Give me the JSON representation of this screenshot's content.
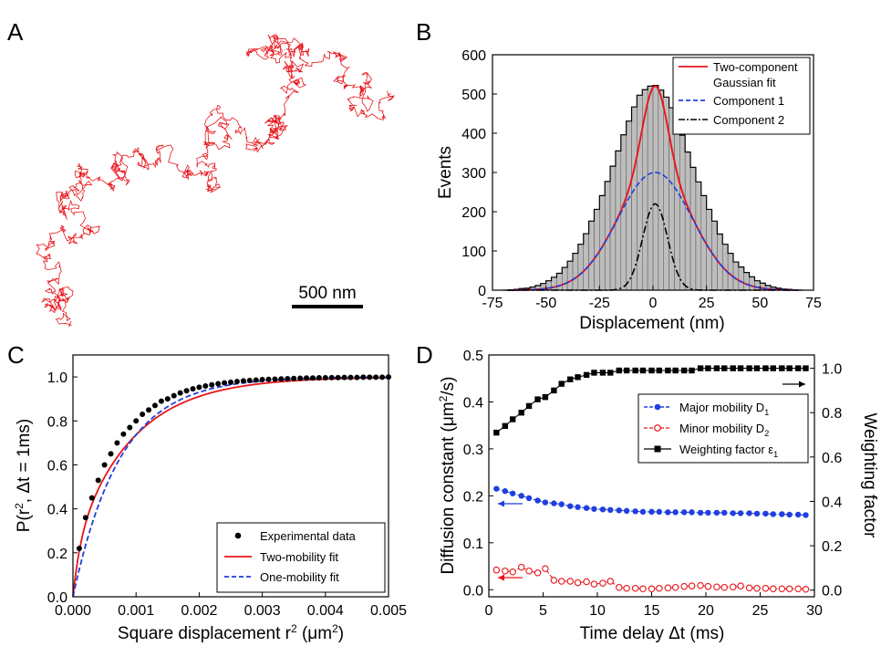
{
  "panels": {
    "A": {
      "letter": "A",
      "scale_bar_label": "500 nm",
      "trajectory_color": "#e8141a"
    },
    "B": {
      "letter": "B",
      "xlabel": "Displacement (nm)",
      "ylabel": "Events",
      "legend": [
        {
          "label_lines": [
            "Two-component",
            "Gaussian fit"
          ],
          "style": "solid",
          "color": "#e8141a"
        },
        {
          "label_lines": [
            "Component 1"
          ],
          "style": "dashed",
          "color": "#1f3fe0"
        },
        {
          "label_lines": [
            "Component 2"
          ],
          "style": "dashdot",
          "color": "#000000"
        }
      ]
    },
    "C": {
      "letter": "C",
      "xlabel_main": "Square displacement r",
      "xlabel_sup": "2",
      "xlabel_unit_pre": " (μm",
      "xlabel_unit_sup": "2",
      "xlabel_unit_post": ")",
      "ylabel_pre": "P(r",
      "ylabel_sup": "2",
      "ylabel_post": ", Δt = 1ms)",
      "legend": [
        {
          "label": "Experimental data",
          "style": "dot",
          "color": "#000000"
        },
        {
          "label": "Two-mobility fit",
          "style": "solid",
          "color": "#e8141a"
        },
        {
          "label": "One-mobility fit",
          "style": "dashed",
          "color": "#1f3fe0"
        }
      ]
    },
    "D": {
      "letter": "D",
      "xlabel": "Time delay Δt (ms)",
      "ylabel_left_pre": "Diffusion constant (μm",
      "ylabel_left_sup": "2",
      "ylabel_left_post": "/s)",
      "ylabel_right": "Weighting factor",
      "legend": [
        {
          "label_main": "Major mobility D",
          "label_sub": "1",
          "marker": "filled-circle",
          "color": "#1f3fe0"
        },
        {
          "label_main": "Minor mobility D",
          "label_sub": "2",
          "marker": "open-circle",
          "color": "#e8141a"
        },
        {
          "label_main": "Weighting factor ε",
          "label_sub": "1",
          "marker": "square",
          "color": "#000000"
        }
      ]
    }
  },
  "chart_data": [
    {
      "panel": "B",
      "type": "bar",
      "title": "",
      "xlabel": "Displacement (nm)",
      "ylabel": "Events",
      "xlim": [
        -75,
        75
      ],
      "ylim": [
        0,
        600
      ],
      "xticks": [
        -75,
        -50,
        -25,
        0,
        25,
        50,
        75
      ],
      "yticks": [
        0,
        100,
        200,
        300,
        400,
        500,
        600
      ],
      "bin_width": 2.5,
      "histogram": {
        "bin_centers": [
          -68.75,
          -66.25,
          -63.75,
          -61.25,
          -58.75,
          -56.25,
          -53.75,
          -51.25,
          -48.75,
          -46.25,
          -43.75,
          -41.25,
          -38.75,
          -36.25,
          -33.75,
          -31.25,
          -28.75,
          -26.25,
          -23.75,
          -21.25,
          -18.75,
          -16.25,
          -13.75,
          -11.25,
          -8.75,
          -6.25,
          -3.75,
          -1.25,
          1.25,
          3.75,
          6.25,
          8.75,
          11.25,
          13.75,
          16.25,
          18.75,
          21.25,
          23.75,
          26.25,
          28.75,
          31.25,
          33.75,
          36.25,
          38.75,
          41.25,
          43.75,
          46.25,
          48.75,
          51.25,
          53.75,
          56.25,
          58.75,
          61.25,
          63.75,
          66.25,
          68.75
        ],
        "counts": [
          0,
          1,
          2,
          4,
          5,
          8,
          12,
          17,
          24,
          33,
          43,
          58,
          74,
          94,
          117,
          144,
          176,
          206,
          241,
          277,
          316,
          355,
          396,
          431,
          467,
          497,
          511,
          520,
          522,
          510,
          492,
          465,
          431,
          395,
          352,
          313,
          276,
          241,
          206,
          176,
          143,
          117,
          94,
          72,
          59,
          45,
          34,
          24,
          18,
          12,
          8,
          5,
          3,
          2,
          1,
          0
        ]
      },
      "series": [
        {
          "name": "Two-component Gaussian fit",
          "style": "solid",
          "color": "#e8141a",
          "components": [
            {
              "amplitude": 300,
              "mean": 1,
              "sigma": 17.5
            },
            {
              "amplitude": 220,
              "mean": 1,
              "sigma": 5.8
            }
          ]
        },
        {
          "name": "Component 1",
          "style": "dashed",
          "color": "#1f3fe0",
          "components": [
            {
              "amplitude": 300,
              "mean": 1,
              "sigma": 17.5
            }
          ]
        },
        {
          "name": "Component 2",
          "style": "dashdot",
          "color": "#000000",
          "components": [
            {
              "amplitude": 220,
              "mean": 1,
              "sigma": 5.8
            }
          ]
        }
      ]
    },
    {
      "panel": "C",
      "type": "line",
      "title": "",
      "xlabel": "Square displacement r² (μm²)",
      "ylabel": "P(r², Δt = 1ms)",
      "xlim": [
        0,
        0.005
      ],
      "ylim": [
        0,
        1.1
      ],
      "xticks": [
        "0.000",
        "0.001",
        "0.002",
        "0.003",
        "0.004",
        "0.005"
      ],
      "yticks": [
        "0.0",
        "0.2",
        "0.4",
        "0.6",
        "0.8",
        "1.0"
      ],
      "series": [
        {
          "name": "Experimental data",
          "type": "scatter",
          "color": "#000000",
          "x": [
            0.0001,
            0.0002,
            0.0003,
            0.0004,
            0.0005,
            0.0006,
            0.0007,
            0.0008,
            0.0009,
            0.001,
            0.0011,
            0.0012,
            0.0013,
            0.0014,
            0.0015,
            0.0016,
            0.0017,
            0.0018,
            0.0019,
            0.002,
            0.0021,
            0.0022,
            0.0023,
            0.0024,
            0.0025,
            0.0026,
            0.0027,
            0.0028,
            0.0029,
            0.003,
            0.0031,
            0.0032,
            0.0033,
            0.0034,
            0.0035,
            0.0036,
            0.0037,
            0.0038,
            0.0039,
            0.004,
            0.0041,
            0.0042,
            0.0043,
            0.0044,
            0.0045,
            0.0046,
            0.0047,
            0.0048,
            0.0049,
            0.005
          ],
          "y": [
            0.22,
            0.36,
            0.45,
            0.53,
            0.6,
            0.65,
            0.7,
            0.74,
            0.77,
            0.8,
            0.83,
            0.85,
            0.87,
            0.89,
            0.9,
            0.915,
            0.927,
            0.937,
            0.946,
            0.953,
            0.959,
            0.964,
            0.969,
            0.973,
            0.976,
            0.979,
            0.982,
            0.984,
            0.986,
            0.988,
            0.989,
            0.99,
            0.991,
            0.992,
            0.993,
            0.994,
            0.995,
            0.995,
            0.996,
            0.996,
            0.997,
            0.997,
            0.998,
            0.998,
            0.998,
            0.999,
            0.999,
            0.999,
            0.999,
            1.0
          ]
        },
        {
          "name": "Two-mobility fit",
          "style": "solid",
          "color": "#e8141a",
          "model": {
            "weights": [
              0.78,
              0.22
            ],
            "scales": [
              0.00092,
              0.000115
            ]
          }
        },
        {
          "name": "One-mobility fit",
          "style": "dashed",
          "color": "#1f3fe0",
          "model": {
            "weights": [
              1.0
            ],
            "scales": [
              0.00075
            ]
          }
        }
      ]
    },
    {
      "panel": "D",
      "type": "line",
      "title": "",
      "xlabel": "Time delay Δt (ms)",
      "ylabel": "Diffusion constant (μm²/s)",
      "ylabel_right": "Weighting factor",
      "xlim": [
        0,
        30
      ],
      "ylim": [
        -0.015,
        0.5
      ],
      "ylim_right": [
        -0.03,
        1.06
      ],
      "xticks": [
        0,
        5,
        10,
        15,
        20,
        25,
        30
      ],
      "yticks": [
        "0.0",
        "0.1",
        "0.2",
        "0.3",
        "0.4",
        "0.5"
      ],
      "yticks_right": [
        "0.0",
        "0.2",
        "0.4",
        "0.6",
        "0.8",
        "1.0"
      ],
      "x": [
        0.7,
        1.5,
        2.2,
        3,
        3.7,
        4.5,
        5.2,
        6,
        6.7,
        7.5,
        8.2,
        9,
        9.7,
        10.5,
        11.2,
        12,
        12.7,
        13.5,
        14.2,
        15,
        15.7,
        16.5,
        17.2,
        18,
        18.7,
        19.5,
        20.2,
        21,
        21.7,
        22.5,
        23.2,
        24,
        24.7,
        25.5,
        26.2,
        27,
        27.7,
        28.5,
        29.2
      ],
      "series": [
        {
          "name": "Major mobility D1",
          "axis": "left",
          "marker": "filled-circle",
          "color": "#1f3fe0",
          "y": [
            0.215,
            0.21,
            0.205,
            0.2,
            0.195,
            0.19,
            0.186,
            0.184,
            0.182,
            0.178,
            0.176,
            0.174,
            0.172,
            0.171,
            0.17,
            0.169,
            0.168,
            0.167,
            0.166,
            0.166,
            0.166,
            0.165,
            0.165,
            0.165,
            0.165,
            0.164,
            0.164,
            0.164,
            0.164,
            0.163,
            0.163,
            0.163,
            0.162,
            0.162,
            0.161,
            0.161,
            0.16,
            0.16,
            0.159
          ]
        },
        {
          "name": "Minor mobility D2",
          "axis": "left",
          "marker": "open-circle",
          "color": "#e8141a",
          "y": [
            0.042,
            0.04,
            0.038,
            0.048,
            0.04,
            0.036,
            0.045,
            0.02,
            0.018,
            0.018,
            0.015,
            0.017,
            0.012,
            0.014,
            0.018,
            0.005,
            0.003,
            0.003,
            0.002,
            0.002,
            0.003,
            0.004,
            0.005,
            0.007,
            0.008,
            0.009,
            0.007,
            0.006,
            0.005,
            0.006,
            0.008,
            0.004,
            0.003,
            0.003,
            0.002,
            0.002,
            0.002,
            0.002,
            0.001
          ]
        },
        {
          "name": "Weighting factor ε1",
          "axis": "right",
          "marker": "square",
          "color": "#000000",
          "y": [
            0.71,
            0.74,
            0.77,
            0.8,
            0.83,
            0.86,
            0.87,
            0.9,
            0.93,
            0.95,
            0.96,
            0.97,
            0.98,
            0.98,
            0.98,
            0.99,
            0.99,
            0.99,
            0.99,
            0.99,
            0.99,
            0.99,
            0.99,
            0.99,
            0.99,
            1.0,
            1.0,
            1.0,
            1.0,
            1.0,
            1.0,
            1.0,
            1.0,
            1.0,
            1.0,
            1.0,
            1.0,
            1.0,
            1.0
          ]
        }
      ],
      "arrows": [
        {
          "points_to": "left",
          "color": "#1f3fe0"
        },
        {
          "points_to": "left",
          "color": "#e8141a"
        },
        {
          "points_to": "right",
          "color": "#000000"
        }
      ]
    }
  ]
}
